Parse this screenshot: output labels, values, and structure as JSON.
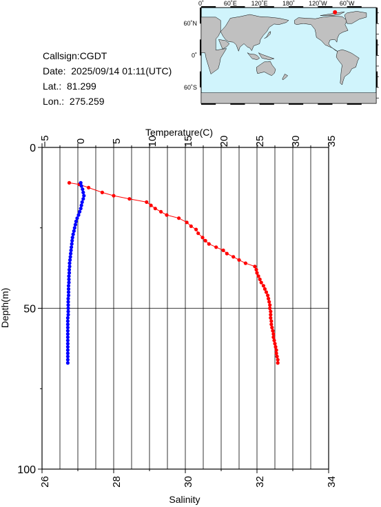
{
  "info": {
    "callsign": "Callsign:CGDT",
    "date": "Date:  2025/09/14 01:11(UTC)",
    "lat": "Lat.:  81.299",
    "lon": "Lon.:  275.259"
  },
  "map": {
    "top_ticks": [
      "0˚",
      "60˚E",
      "120˚E",
      "180˚",
      "120˚W",
      "60˚W"
    ],
    "lat_ticks": [
      "60˚N",
      "0˚",
      "60˚S"
    ],
    "ocean_color": "#d0f4fc",
    "land_color": "#c0c0c0",
    "marker_color": "#ff0000",
    "marker_lon": 275.259,
    "marker_lat": 81.299
  },
  "chart_data": {
    "type": "scatter",
    "ylabel": "Depth(m)",
    "ylim": [
      0,
      100
    ],
    "y_ticks": [
      "0",
      "50",
      "100"
    ],
    "top_axis": {
      "label": "Temperature(C)",
      "lim": [
        -5,
        35
      ],
      "ticks": [
        "−5",
        "0",
        "5",
        "10",
        "15",
        "20",
        "25",
        "30",
        "35"
      ]
    },
    "bottom_axis": {
      "label": "Salinity",
      "lim": [
        26,
        34
      ],
      "ticks": [
        "26",
        "28",
        "30",
        "32",
        "34"
      ]
    },
    "grid": true,
    "series": [
      {
        "axis": "temperature",
        "color": "#ff0000",
        "connected": true,
        "points": [
          [
            -1.2,
            11
          ],
          [
            0.2,
            11.5
          ],
          [
            1.5,
            12.5
          ],
          [
            3.4,
            14
          ],
          [
            5.0,
            15
          ],
          [
            7.2,
            16
          ],
          [
            9.6,
            17
          ],
          [
            10.2,
            18
          ],
          [
            10.8,
            19
          ],
          [
            11.6,
            20
          ],
          [
            12.4,
            21
          ],
          [
            14.1,
            22
          ],
          [
            15.2,
            23.3
          ],
          [
            15.8,
            24.5
          ],
          [
            16.5,
            25.5
          ],
          [
            16.8,
            26.7
          ],
          [
            17.4,
            28
          ],
          [
            17.8,
            29
          ],
          [
            18.3,
            30
          ],
          [
            19.3,
            31
          ],
          [
            20.3,
            32
          ],
          [
            20.8,
            33
          ],
          [
            21.7,
            34
          ],
          [
            22.5,
            35
          ],
          [
            23.4,
            36
          ],
          [
            24.7,
            37
          ],
          [
            24.9,
            38
          ],
          [
            25.0,
            39
          ],
          [
            25.2,
            40
          ],
          [
            25.4,
            41
          ],
          [
            25.6,
            42
          ],
          [
            25.9,
            43
          ],
          [
            26.1,
            44
          ],
          [
            26.3,
            45
          ],
          [
            26.5,
            46
          ],
          [
            26.6,
            47
          ],
          [
            26.7,
            48
          ],
          [
            26.8,
            49
          ],
          [
            26.8,
            50
          ],
          [
            26.9,
            51
          ],
          [
            26.9,
            52
          ],
          [
            26.9,
            53
          ],
          [
            27.0,
            54
          ],
          [
            27.0,
            55
          ],
          [
            27.1,
            56
          ],
          [
            27.2,
            57
          ],
          [
            27.3,
            58
          ],
          [
            27.3,
            59
          ],
          [
            27.4,
            60
          ],
          [
            27.5,
            61
          ],
          [
            27.6,
            62
          ],
          [
            27.7,
            63
          ],
          [
            27.7,
            64
          ],
          [
            27.8,
            65
          ],
          [
            27.9,
            66
          ],
          [
            27.9,
            67
          ]
        ]
      },
      {
        "axis": "salinity",
        "color": "#0000ff",
        "connected": true,
        "points": [
          [
            27.08,
            11
          ],
          [
            27.1,
            12
          ],
          [
            27.13,
            13
          ],
          [
            27.15,
            14
          ],
          [
            27.17,
            15
          ],
          [
            27.15,
            16
          ],
          [
            27.12,
            17
          ],
          [
            27.1,
            18
          ],
          [
            27.08,
            19
          ],
          [
            27.05,
            20
          ],
          [
            27.02,
            21
          ],
          [
            26.98,
            22
          ],
          [
            26.95,
            23
          ],
          [
            26.93,
            24
          ],
          [
            26.91,
            25
          ],
          [
            26.89,
            26
          ],
          [
            26.87,
            27
          ],
          [
            26.85,
            28
          ],
          [
            26.84,
            29
          ],
          [
            26.83,
            30
          ],
          [
            26.82,
            31
          ],
          [
            26.81,
            32
          ],
          [
            26.8,
            33
          ],
          [
            26.79,
            34
          ],
          [
            26.78,
            35
          ],
          [
            26.77,
            36
          ],
          [
            26.77,
            37
          ],
          [
            26.76,
            38
          ],
          [
            26.76,
            39
          ],
          [
            26.75,
            40
          ],
          [
            26.75,
            41
          ],
          [
            26.75,
            42
          ],
          [
            26.74,
            43
          ],
          [
            26.74,
            44
          ],
          [
            26.74,
            45
          ],
          [
            26.74,
            46
          ],
          [
            26.73,
            47
          ],
          [
            26.73,
            48
          ],
          [
            26.73,
            49
          ],
          [
            26.73,
            50
          ],
          [
            26.73,
            51
          ],
          [
            26.73,
            52
          ],
          [
            26.72,
            53
          ],
          [
            26.72,
            54
          ],
          [
            26.72,
            55
          ],
          [
            26.72,
            56
          ],
          [
            26.72,
            57
          ],
          [
            26.72,
            58
          ],
          [
            26.72,
            59
          ],
          [
            26.72,
            60
          ],
          [
            26.72,
            61
          ],
          [
            26.72,
            62
          ],
          [
            26.72,
            63
          ],
          [
            26.72,
            64
          ],
          [
            26.72,
            65
          ],
          [
            26.72,
            66
          ],
          [
            26.72,
            67
          ]
        ]
      }
    ]
  }
}
